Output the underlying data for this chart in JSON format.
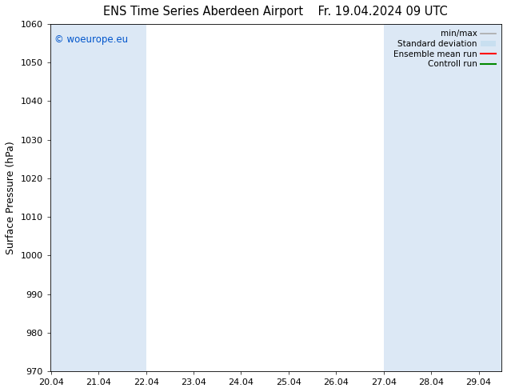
{
  "title": "ENS Time Series Aberdeen Airport",
  "title2": "Fr. 19.04.2024 09 UTC",
  "ylabel": "Surface Pressure (hPa)",
  "ylim": [
    970,
    1060
  ],
  "yticks": [
    970,
    980,
    990,
    1000,
    1010,
    1020,
    1030,
    1040,
    1050,
    1060
  ],
  "xtick_labels": [
    "20.04",
    "21.04",
    "22.04",
    "23.04",
    "24.04",
    "25.04",
    "26.04",
    "27.04",
    "28.04",
    "29.04"
  ],
  "shaded_color": "#dce8f5",
  "watermark": "© woeurope.eu",
  "watermark_color": "#0055cc",
  "legend_entries": [
    "min/max",
    "Standard deviation",
    "Ensemble mean run",
    "Controll run"
  ],
  "minmax_color": "#aaaaaa",
  "std_color": "#c8dff0",
  "ensemble_color": "#ff0000",
  "control_color": "#008800",
  "background_color": "#ffffff",
  "title_fontsize": 10.5,
  "tick_fontsize": 8,
  "ylabel_fontsize": 9
}
